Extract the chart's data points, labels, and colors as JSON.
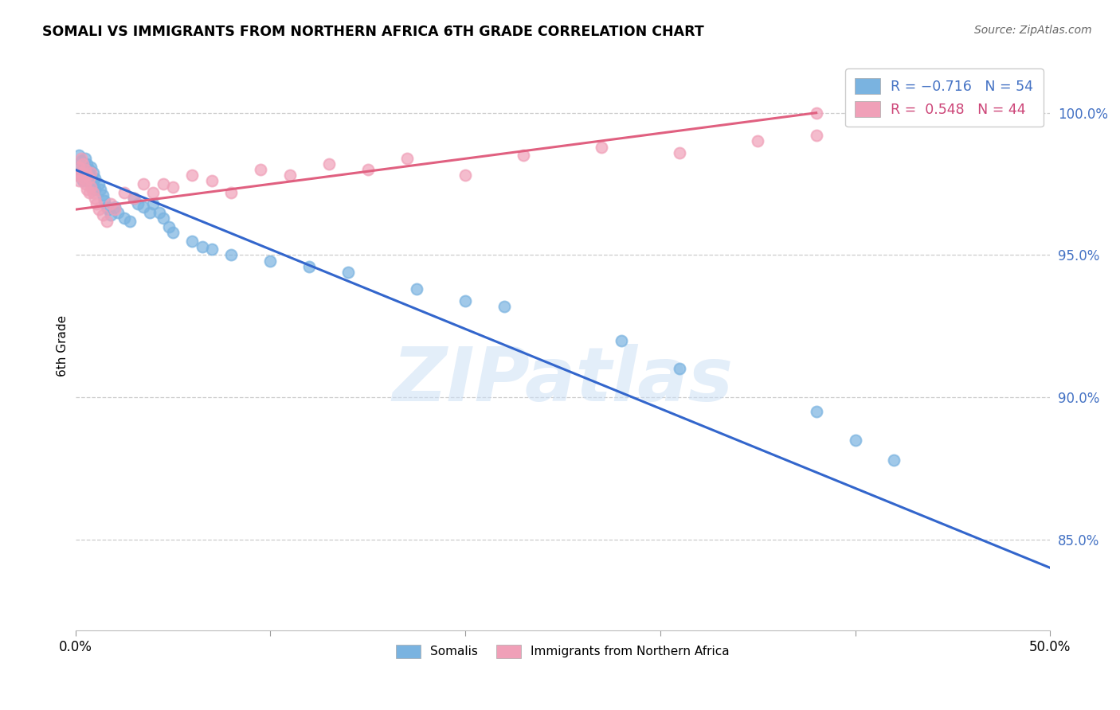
{
  "title": "SOMALI VS IMMIGRANTS FROM NORTHERN AFRICA 6TH GRADE CORRELATION CHART",
  "source": "Source: ZipAtlas.com",
  "ylabel": "6th Grade",
  "xlim": [
    0.0,
    0.5
  ],
  "ylim": [
    0.818,
    1.018
  ],
  "yticks": [
    0.85,
    0.9,
    0.95,
    1.0
  ],
  "ytick_labels": [
    "85.0%",
    "90.0%",
    "95.0%",
    "100.0%"
  ],
  "xticks": [
    0.0,
    0.1,
    0.2,
    0.3,
    0.4,
    0.5
  ],
  "xtick_labels": [
    "0.0%",
    "",
    "",
    "",
    "",
    "50.0%"
  ],
  "somali_color": "#7ab3e0",
  "nafr_color": "#f0a0b8",
  "somali_line_color": "#3366cc",
  "nafr_line_color": "#e06080",
  "legend_label1": "R = −0.716   N = 54",
  "legend_label2": "R =  0.548   N = 44",
  "legend_series1": "Somalis",
  "legend_series2": "Immigrants from Northern Africa",
  "watermark": "ZIPatlas",
  "somali_x": [
    0.001,
    0.002,
    0.002,
    0.003,
    0.003,
    0.004,
    0.004,
    0.005,
    0.005,
    0.006,
    0.006,
    0.007,
    0.007,
    0.008,
    0.008,
    0.009,
    0.009,
    0.01,
    0.01,
    0.012,
    0.013,
    0.014,
    0.015,
    0.016,
    0.017,
    0.018,
    0.02,
    0.022,
    0.025,
    0.028,
    0.03,
    0.032,
    0.035,
    0.038,
    0.04,
    0.043,
    0.045,
    0.048,
    0.05,
    0.06,
    0.065,
    0.07,
    0.08,
    0.1,
    0.12,
    0.14,
    0.175,
    0.2,
    0.22,
    0.28,
    0.31,
    0.38,
    0.4,
    0.42
  ],
  "somali_y": [
    0.978,
    0.981,
    0.985,
    0.979,
    0.983,
    0.976,
    0.98,
    0.981,
    0.984,
    0.978,
    0.982,
    0.976,
    0.98,
    0.977,
    0.981,
    0.975,
    0.979,
    0.973,
    0.977,
    0.975,
    0.973,
    0.971,
    0.969,
    0.967,
    0.966,
    0.964,
    0.967,
    0.965,
    0.963,
    0.962,
    0.97,
    0.968,
    0.967,
    0.965,
    0.968,
    0.965,
    0.963,
    0.96,
    0.958,
    0.955,
    0.953,
    0.952,
    0.95,
    0.948,
    0.946,
    0.944,
    0.938,
    0.934,
    0.932,
    0.92,
    0.91,
    0.895,
    0.885,
    0.878
  ],
  "nafr_x": [
    0.001,
    0.002,
    0.002,
    0.003,
    0.003,
    0.004,
    0.004,
    0.005,
    0.005,
    0.006,
    0.006,
    0.007,
    0.007,
    0.008,
    0.008,
    0.009,
    0.01,
    0.011,
    0.012,
    0.014,
    0.016,
    0.018,
    0.02,
    0.025,
    0.03,
    0.035,
    0.04,
    0.045,
    0.05,
    0.06,
    0.07,
    0.08,
    0.095,
    0.11,
    0.13,
    0.15,
    0.17,
    0.2,
    0.23,
    0.27,
    0.31,
    0.35,
    0.38,
    0.38
  ],
  "nafr_y": [
    0.978,
    0.976,
    0.981,
    0.979,
    0.984,
    0.977,
    0.982,
    0.975,
    0.98,
    0.973,
    0.978,
    0.972,
    0.977,
    0.974,
    0.979,
    0.972,
    0.97,
    0.968,
    0.966,
    0.964,
    0.962,
    0.968,
    0.966,
    0.972,
    0.97,
    0.975,
    0.972,
    0.975,
    0.974,
    0.978,
    0.976,
    0.972,
    0.98,
    0.978,
    0.982,
    0.98,
    0.984,
    0.978,
    0.985,
    0.988,
    0.986,
    0.99,
    0.992,
    1.0
  ],
  "somali_line_x0": 0.0,
  "somali_line_x1": 0.5,
  "somali_line_y0": 0.98,
  "somali_line_y1": 0.84,
  "nafr_line_x0": 0.0,
  "nafr_line_x1": 0.38,
  "nafr_line_y0": 0.966,
  "nafr_line_y1": 1.0
}
